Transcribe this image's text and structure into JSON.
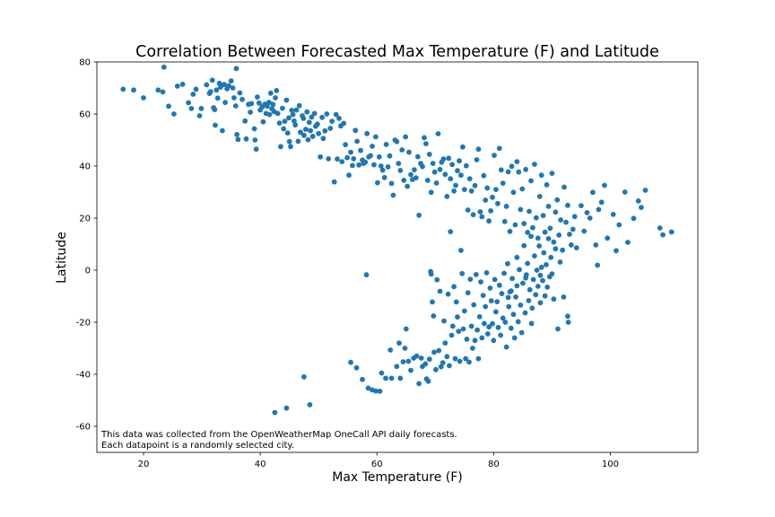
{
  "chart_data": {
    "type": "scatter",
    "title": "Correlation Between Forecasted Max Temperature (F) and Latitude",
    "xlabel": "Max Temperature (F)",
    "ylabel": "Latitude",
    "xlim": [
      12,
      115
    ],
    "ylim": [
      -70,
      80
    ],
    "xticks": [
      20,
      40,
      60,
      80,
      100
    ],
    "yticks": [
      -60,
      -40,
      -20,
      0,
      20,
      40,
      60,
      80
    ],
    "grid": false,
    "color": "#1f77b4",
    "annotation": [
      "This data was collected from the OpenWeatherMap OneCall API daily forecasts.",
      "Each datapoint is a randomly selected city."
    ],
    "points": [
      [
        16.5,
        69.5
      ],
      [
        18.3,
        69.2
      ],
      [
        20,
        66.2
      ],
      [
        22.5,
        69.2
      ],
      [
        23.3,
        68.5
      ],
      [
        23.5,
        78
      ],
      [
        24.3,
        63
      ],
      [
        25.2,
        60
      ],
      [
        25.8,
        70.7
      ],
      [
        26.7,
        71.4
      ],
      [
        27.7,
        64.3
      ],
      [
        28.2,
        62.1
      ],
      [
        28.5,
        67.6
      ],
      [
        29,
        69.5
      ],
      [
        29.6,
        59.3
      ],
      [
        29.9,
        62.1
      ],
      [
        30.8,
        71.2
      ],
      [
        31.3,
        67.9
      ],
      [
        31.5,
        68.6
      ],
      [
        31.8,
        73
      ],
      [
        32,
        62.4
      ],
      [
        32.2,
        61.7
      ],
      [
        32.3,
        55.7
      ],
      [
        32.5,
        69.2
      ],
      [
        32.7,
        66.1
      ],
      [
        33,
        71.8
      ],
      [
        33.2,
        70.3
      ],
      [
        33.5,
        53.6
      ],
      [
        33.8,
        71.3
      ],
      [
        34,
        64.4
      ],
      [
        34.3,
        69.7
      ],
      [
        34.6,
        70.8
      ],
      [
        35,
        72.7
      ],
      [
        35.3,
        70
      ],
      [
        35.5,
        66.2
      ],
      [
        35.8,
        63.1
      ],
      [
        35.9,
        77.5
      ],
      [
        36,
        52.1
      ],
      [
        36.2,
        50.2
      ],
      [
        36.5,
        68.1
      ],
      [
        36.9,
        65.6
      ],
      [
        37.4,
        57.3
      ],
      [
        37.6,
        50.4
      ],
      [
        38,
        63.7
      ],
      [
        38.3,
        60.7
      ],
      [
        38.5,
        64
      ],
      [
        39,
        54.3
      ],
      [
        39.1,
        50
      ],
      [
        39.3,
        46.5
      ],
      [
        39.5,
        66.5
      ],
      [
        39.8,
        64.2
      ],
      [
        40,
        61.5
      ],
      [
        40.3,
        62.7
      ],
      [
        40.5,
        57
      ],
      [
        40.8,
        63.8
      ],
      [
        41,
        60.2
      ],
      [
        41.2,
        63
      ],
      [
        41.5,
        64.5
      ],
      [
        41.6,
        59.8
      ],
      [
        41.8,
        68
      ],
      [
        42,
        62
      ],
      [
        42.2,
        63.7
      ],
      [
        42.4,
        60.9
      ],
      [
        42.6,
        66.2
      ],
      [
        42.8,
        69
      ],
      [
        43,
        60.2
      ],
      [
        43.3,
        56.5
      ],
      [
        43.5,
        47.5
      ],
      [
        43.8,
        62.2
      ],
      [
        44,
        54.3
      ],
      [
        44.2,
        57.2
      ],
      [
        44.5,
        65.3
      ],
      [
        44.7,
        52.7
      ],
      [
        44.9,
        58.5
      ],
      [
        45,
        49.4
      ],
      [
        45.2,
        47.5
      ],
      [
        45.4,
        61.4
      ],
      [
        45.6,
        59.8
      ],
      [
        45.8,
        57.3
      ],
      [
        46,
        55.8
      ],
      [
        46.2,
        61.5
      ],
      [
        46.5,
        49.5
      ],
      [
        46.7,
        63.2
      ],
      [
        46.9,
        53
      ],
      [
        47.2,
        59.3
      ],
      [
        47.4,
        58.3
      ],
      [
        47.5,
        51.8
      ],
      [
        47.8,
        54.1
      ],
      [
        48,
        60.8
      ],
      [
        48.2,
        50.1
      ],
      [
        48.4,
        56.8
      ],
      [
        48.6,
        53.6
      ],
      [
        48.8,
        58.8
      ],
      [
        49,
        51.4
      ],
      [
        49.3,
        60.2
      ],
      [
        49.5,
        55.3
      ],
      [
        49.8,
        56.1
      ],
      [
        50,
        52.5
      ],
      [
        50.3,
        43.5
      ],
      [
        50.6,
        58.7
      ],
      [
        50.8,
        50.6
      ],
      [
        51.1,
        53.5
      ],
      [
        51.4,
        60
      ],
      [
        51.7,
        42.8
      ],
      [
        52,
        54.5
      ],
      [
        52.3,
        57.2
      ],
      [
        52.7,
        33.9
      ],
      [
        53,
        59.8
      ],
      [
        53.2,
        42.7
      ],
      [
        53.5,
        58.3
      ],
      [
        53.8,
        55.4
      ],
      [
        54,
        41.7
      ],
      [
        54.3,
        56.4
      ],
      [
        54.6,
        48.2
      ],
      [
        54.9,
        43.2
      ],
      [
        55.2,
        36.5
      ],
      [
        55.5,
        45.3
      ],
      [
        55.8,
        40.2
      ],
      [
        56,
        42.8
      ],
      [
        56.3,
        53.7
      ],
      [
        56.6,
        49.5
      ],
      [
        56.9,
        40.4
      ],
      [
        57.2,
        46
      ],
      [
        57.5,
        42.3
      ],
      [
        57.7,
        41
      ],
      [
        58,
        41.5
      ],
      [
        58.3,
        52.5
      ],
      [
        58.6,
        43.5
      ],
      [
        58.9,
        44
      ],
      [
        59.2,
        47.6
      ],
      [
        59.5,
        40.5
      ],
      [
        59.8,
        51.2
      ],
      [
        60.1,
        33.6
      ],
      [
        60.4,
        43.5
      ],
      [
        60.7,
        40
      ],
      [
        61,
        38.4
      ],
      [
        61.3,
        35.6
      ],
      [
        61.6,
        48.3
      ],
      [
        61.9,
        39.7
      ],
      [
        62.2,
        43.9
      ],
      [
        62.5,
        33.3
      ],
      [
        62.8,
        28.8
      ],
      [
        63.1,
        50
      ],
      [
        63.4,
        49.4
      ],
      [
        63.7,
        41
      ],
      [
        64,
        38.3
      ],
      [
        64.3,
        46.2
      ],
      [
        64.6,
        34.5
      ],
      [
        64.9,
        51.2
      ],
      [
        65.2,
        32.2
      ],
      [
        65.5,
        45.3
      ],
      [
        65.8,
        36.7
      ],
      [
        66.1,
        34.8
      ],
      [
        66.4,
        38.6
      ],
      [
        66.7,
        35.5
      ],
      [
        67,
        43.6
      ],
      [
        67.2,
        21.1
      ],
      [
        67.5,
        41
      ],
      [
        67.8,
        39.8
      ],
      [
        68.1,
        50.9
      ],
      [
        68.4,
        48.6
      ],
      [
        68.7,
        34.5
      ],
      [
        69,
        44.5
      ],
      [
        69.3,
        29.9
      ],
      [
        69.6,
        41
      ],
      [
        69.9,
        37.7
      ],
      [
        70.2,
        33.5
      ],
      [
        70.5,
        52.4
      ],
      [
        70.8,
        38.7
      ],
      [
        71.1,
        41.5
      ],
      [
        71.4,
        42.7
      ],
      [
        71.7,
        36.8
      ],
      [
        72,
        28.3
      ],
      [
        72.3,
        43
      ],
      [
        72.6,
        35.1
      ],
      [
        72.9,
        40.6
      ],
      [
        73.2,
        30.4
      ],
      [
        73.5,
        32.6
      ],
      [
        73.8,
        38.2
      ],
      [
        74.1,
        42
      ],
      [
        74.4,
        36.5
      ],
      [
        74.7,
        47.3
      ],
      [
        75,
        31
      ],
      [
        75.3,
        40.1
      ],
      [
        75.6,
        23.1
      ],
      [
        75.9,
        35.1
      ],
      [
        76.2,
        30.4
      ],
      [
        76.5,
        21.3
      ],
      [
        76.8,
        32.5
      ],
      [
        77.1,
        42.4
      ],
      [
        77.4,
        46.5
      ],
      [
        77.7,
        22.4
      ],
      [
        78,
        20.5
      ],
      [
        78.3,
        36.3
      ],
      [
        78.6,
        26.9
      ],
      [
        78.9,
        31.6
      ],
      [
        79.2,
        18.9
      ],
      [
        79.5,
        22.8
      ],
      [
        79.8,
        28
      ],
      [
        80.1,
        44.1
      ],
      [
        80.4,
        31
      ],
      [
        80.7,
        25.6
      ],
      [
        81,
        46.8
      ],
      [
        81.3,
        38.5
      ],
      [
        81.6,
        33.4
      ],
      [
        81.9,
        18.7
      ],
      [
        82.2,
        24.5
      ],
      [
        82.5,
        37.8
      ],
      [
        82.8,
        14.9
      ],
      [
        83.1,
        39.9
      ],
      [
        83.4,
        29.9
      ],
      [
        83.7,
        17.4
      ],
      [
        84,
        41.7
      ],
      [
        84.3,
        37.7
      ],
      [
        84.6,
        23.3
      ],
      [
        84.9,
        31.2
      ],
      [
        85.2,
        17.9
      ],
      [
        85.5,
        38.7
      ],
      [
        85.8,
        14.5
      ],
      [
        86.1,
        22.6
      ],
      [
        86.4,
        34.3
      ],
      [
        86.7,
        16.3
      ],
      [
        87,
        40.7
      ],
      [
        87.3,
        20.1
      ],
      [
        87.6,
        12.3
      ],
      [
        87.9,
        28.3
      ],
      [
        88.2,
        36.5
      ],
      [
        88.5,
        21
      ],
      [
        88.8,
        14.6
      ],
      [
        89.1,
        32.8
      ],
      [
        89.4,
        24.5
      ],
      [
        89.7,
        16.1
      ],
      [
        90,
        37.2
      ],
      [
        90.3,
        10.8
      ],
      [
        90.6,
        22.3
      ],
      [
        90.9,
        27
      ],
      [
        91.2,
        13.5
      ],
      [
        91.5,
        19.3
      ],
      [
        91.8,
        7.7
      ],
      [
        92.1,
        31.9
      ],
      [
        92.4,
        18.4
      ],
      [
        92.7,
        24.9
      ],
      [
        93,
        13.8
      ],
      [
        93.3,
        9.7
      ],
      [
        93.6,
        15.7
      ],
      [
        93.9,
        20.6
      ],
      [
        94.2,
        8.6
      ],
      [
        95,
        24.8
      ],
      [
        96,
        22.1
      ],
      [
        97,
        29.9
      ],
      [
        97.5,
        9.7
      ],
      [
        98,
        23.3
      ],
      [
        98.5,
        26.1
      ],
      [
        97.8,
        1.9
      ],
      [
        99,
        32.6
      ],
      [
        99.5,
        12.3
      ],
      [
        100.5,
        21.4
      ],
      [
        101,
        7.5
      ],
      [
        101.5,
        17.4
      ],
      [
        103,
        10.7
      ],
      [
        104,
        19.9
      ],
      [
        104.8,
        26.6
      ],
      [
        105.3,
        24.1
      ],
      [
        106,
        30.7
      ],
      [
        108.5,
        16.2
      ],
      [
        109,
        13.6
      ],
      [
        110.5,
        14.7
      ],
      [
        102.5,
        30
      ],
      [
        96.5,
        20
      ],
      [
        95.5,
        15
      ],
      [
        42.5,
        -54.7
      ],
      [
        44.5,
        -53
      ],
      [
        47.5,
        -41
      ],
      [
        48.5,
        -51.7
      ],
      [
        55.5,
        -35.4
      ],
      [
        56.5,
        -37.5
      ],
      [
        57.5,
        -42
      ],
      [
        58.2,
        -1.8
      ],
      [
        58.5,
        -45.3
      ],
      [
        59.2,
        -46
      ],
      [
        59.8,
        -46.4
      ],
      [
        60.5,
        -46.5
      ],
      [
        60.8,
        -39.5
      ],
      [
        61.5,
        -41.5
      ],
      [
        62.3,
        -30.7
      ],
      [
        62.5,
        -41.5
      ],
      [
        63.4,
        -37
      ],
      [
        63.8,
        -28
      ],
      [
        64,
        -41.5
      ],
      [
        64.5,
        -35.2
      ],
      [
        64.8,
        -30
      ],
      [
        65,
        -22.6
      ],
      [
        65.4,
        -35
      ],
      [
        65.8,
        -38.5
      ],
      [
        66.3,
        -33.8
      ],
      [
        66.8,
        -33
      ],
      [
        67.2,
        -43.6
      ],
      [
        67.6,
        -33.8
      ],
      [
        67.8,
        -37
      ],
      [
        68.3,
        -36
      ],
      [
        68.5,
        -41.8
      ],
      [
        68.8,
        -42.7
      ],
      [
        69,
        -34.2
      ],
      [
        69.2,
        -0.5
      ],
      [
        69.3,
        -1.5
      ],
      [
        69.5,
        -12.2
      ],
      [
        69.7,
        -17.6
      ],
      [
        69.8,
        -31.5
      ],
      [
        70.1,
        -38.2
      ],
      [
        70.3,
        -3.7
      ],
      [
        70.6,
        -30.9
      ],
      [
        70.8,
        -8.1
      ],
      [
        71,
        -37.1
      ],
      [
        71.3,
        -35.6
      ],
      [
        71.5,
        -19.5
      ],
      [
        71.7,
        -28
      ],
      [
        72,
        -33.2
      ],
      [
        72.2,
        -9.2
      ],
      [
        72.4,
        -36.7
      ],
      [
        72.6,
        14.8
      ],
      [
        72.8,
        -25
      ],
      [
        73,
        -21.5
      ],
      [
        73.2,
        -6.3
      ],
      [
        73.4,
        -34
      ],
      [
        73.6,
        -12.2
      ],
      [
        73.8,
        -18
      ],
      [
        74,
        -23.5
      ],
      [
        74.2,
        -35
      ],
      [
        74.4,
        7.6
      ],
      [
        74.6,
        -1.3
      ],
      [
        74.8,
        -22.6
      ],
      [
        75,
        -15.7
      ],
      [
        75.2,
        -34
      ],
      [
        75.4,
        -26.5
      ],
      [
        75.6,
        -8.7
      ],
      [
        75.8,
        -35.3
      ],
      [
        76,
        -3.5
      ],
      [
        76.2,
        -21.5
      ],
      [
        76.4,
        -30
      ],
      [
        76.6,
        -13.3
      ],
      [
        76.8,
        -27
      ],
      [
        77,
        -1.7
      ],
      [
        77.2,
        -23
      ],
      [
        77.4,
        -34
      ],
      [
        77.6,
        -17.9
      ],
      [
        77.8,
        -4.5
      ],
      [
        78,
        -26
      ],
      [
        78.2,
        -9.7
      ],
      [
        78.4,
        -20.5
      ],
      [
        78.6,
        -14
      ],
      [
        78.8,
        -1
      ],
      [
        79,
        -24.5
      ],
      [
        79.2,
        -21.8
      ],
      [
        79.4,
        -6.9
      ],
      [
        79.6,
        -11.8
      ],
      [
        79.8,
        -20.6
      ],
      [
        80,
        -27
      ],
      [
        80.2,
        -3.6
      ],
      [
        80.4,
        -16
      ],
      [
        80.6,
        -12.1
      ],
      [
        80.8,
        -22
      ],
      [
        81,
        -5.8
      ],
      [
        81.2,
        -25
      ],
      [
        81.4,
        -9
      ],
      [
        81.6,
        -18.4
      ],
      [
        81.8,
        -1.2
      ],
      [
        82,
        -20
      ],
      [
        82.2,
        -29.5
      ],
      [
        82.4,
        2.5
      ],
      [
        82.6,
        -14
      ],
      [
        82.8,
        -8.3
      ],
      [
        83,
        -22.3
      ],
      [
        83.2,
        -3.2
      ],
      [
        83.4,
        -17
      ],
      [
        83.6,
        -26
      ],
      [
        83.8,
        -10.3
      ],
      [
        84,
        4.9
      ],
      [
        84.2,
        -19.8
      ],
      [
        84.4,
        0.2
      ],
      [
        84.6,
        -13.4
      ],
      [
        84.8,
        -24
      ],
      [
        85,
        -5
      ],
      [
        85.2,
        9.4
      ],
      [
        85.4,
        -16.4
      ],
      [
        85.6,
        -1.8
      ],
      [
        85.8,
        2.6
      ],
      [
        86,
        -11.7
      ],
      [
        86.2,
        -7.5
      ],
      [
        86.4,
        13
      ],
      [
        86.6,
        -14.6
      ],
      [
        86.8,
        -3.6
      ],
      [
        87,
        5.5
      ],
      [
        87.2,
        -9.4
      ],
      [
        87.4,
        0
      ],
      [
        87.6,
        -6.2
      ],
      [
        87.8,
        9.3
      ],
      [
        88,
        -12.5
      ],
      [
        88.2,
        1.1
      ],
      [
        88.4,
        -4
      ],
      [
        88.6,
        6.7
      ],
      [
        88.8,
        -9.9
      ],
      [
        89,
        2.1
      ],
      [
        89.2,
        -6.5
      ],
      [
        89.4,
        12.1
      ],
      [
        89.6,
        -2.5
      ],
      [
        89.8,
        4.9
      ],
      [
        90,
        -1.4
      ],
      [
        90.3,
        -11.1
      ],
      [
        90.6,
        8.2
      ],
      [
        91,
        -22.6
      ],
      [
        91.4,
        3.1
      ],
      [
        92,
        -10.3
      ],
      [
        92.7,
        -17.7
      ],
      [
        92.8,
        -20
      ],
      [
        84,
        -6
      ],
      [
        85.5,
        -3
      ],
      [
        83,
        -8
      ],
      [
        86.5,
        -20.5
      ],
      [
        82.5,
        -10.5
      ],
      [
        88,
        -2
      ]
    ]
  }
}
